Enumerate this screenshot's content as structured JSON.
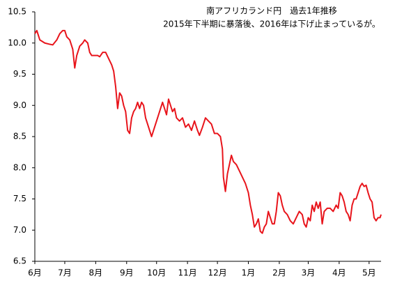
{
  "chart_data": {
    "type": "line",
    "title": "南アフリカランド円　過去1年推移",
    "subtitle": "2015年下半期に暴落後、2016年は下げ止まっているが。",
    "x": [
      0,
      2,
      5,
      10,
      15,
      18,
      22,
      25,
      28,
      30,
      32,
      35,
      37,
      38,
      40,
      42,
      45,
      48,
      50,
      53,
      55,
      57,
      60,
      63,
      65,
      68,
      71,
      74,
      77,
      79,
      81,
      83,
      85,
      87,
      89,
      91,
      93,
      95,
      97,
      99,
      101,
      103,
      105,
      107,
      109,
      111,
      113,
      115,
      117,
      120,
      123,
      126,
      128,
      130,
      132,
      134,
      136,
      138,
      140,
      142,
      145,
      148,
      151,
      154,
      157,
      160,
      163,
      165,
      168,
      171,
      174,
      177,
      180,
      183,
      186,
      188,
      189,
      191,
      193,
      195,
      197,
      199,
      202,
      205,
      208,
      211,
      214,
      216,
      218,
      220,
      222,
      224,
      226,
      228,
      230,
      232,
      234,
      236,
      238,
      240,
      242,
      244,
      246,
      248,
      250,
      253,
      256,
      259,
      262,
      265,
      268,
      270,
      272,
      274,
      276,
      278,
      280,
      282,
      284,
      286,
      288,
      290,
      293,
      296,
      299,
      302,
      304,
      306,
      308,
      310,
      312,
      314,
      316,
      318,
      320,
      322,
      324,
      326,
      328,
      330,
      332,
      334,
      336,
      338,
      340,
      342,
      344,
      346,
      347
    ],
    "series": [
      {
        "name": "南アフリカランド円",
        "color": "#e8141b",
        "values": [
          10.15,
          10.2,
          10.05,
          10.0,
          9.98,
          9.97,
          10.05,
          10.15,
          10.2,
          10.2,
          10.1,
          10.05,
          9.95,
          9.9,
          9.6,
          9.8,
          9.95,
          10.0,
          10.05,
          10.0,
          9.85,
          9.8,
          9.8,
          9.8,
          9.78,
          9.85,
          9.85,
          9.75,
          9.65,
          9.55,
          9.3,
          8.95,
          9.2,
          9.15,
          9.0,
          8.9,
          8.6,
          8.55,
          8.8,
          8.9,
          8.95,
          9.05,
          8.95,
          9.05,
          9.0,
          8.8,
          8.7,
          8.6,
          8.5,
          8.65,
          8.8,
          8.95,
          9.05,
          8.95,
          8.85,
          9.1,
          9.0,
          8.9,
          8.95,
          8.8,
          8.75,
          8.8,
          8.65,
          8.7,
          8.6,
          8.75,
          8.6,
          8.52,
          8.65,
          8.8,
          8.75,
          8.7,
          8.55,
          8.55,
          8.5,
          8.3,
          7.85,
          7.62,
          7.9,
          8.05,
          8.2,
          8.1,
          8.05,
          7.95,
          7.85,
          7.75,
          7.6,
          7.4,
          7.25,
          7.05,
          7.1,
          7.18,
          6.98,
          6.95,
          7.05,
          7.1,
          7.3,
          7.2,
          7.1,
          7.1,
          7.3,
          7.6,
          7.55,
          7.4,
          7.3,
          7.25,
          7.15,
          7.1,
          7.2,
          7.3,
          7.25,
          7.1,
          7.05,
          7.2,
          7.15,
          7.4,
          7.3,
          7.45,
          7.35,
          7.45,
          7.1,
          7.3,
          7.35,
          7.35,
          7.3,
          7.4,
          7.35,
          7.6,
          7.55,
          7.45,
          7.3,
          7.25,
          7.15,
          7.4,
          7.5,
          7.5,
          7.6,
          7.7,
          7.75,
          7.7,
          7.72,
          7.6,
          7.5,
          7.45,
          7.2,
          7.15,
          7.2,
          7.2,
          7.25
        ]
      }
    ],
    "xlim": [
      0,
      347
    ],
    "xticks": [
      {
        "value": 0,
        "label": "6月"
      },
      {
        "value": 30,
        "label": "7月"
      },
      {
        "value": 61,
        "label": "8月"
      },
      {
        "value": 92,
        "label": "9月"
      },
      {
        "value": 122,
        "label": "10月"
      },
      {
        "value": 153,
        "label": "11月"
      },
      {
        "value": 183,
        "label": "12月"
      },
      {
        "value": 214,
        "label": "1月"
      },
      {
        "value": 245,
        "label": "2月"
      },
      {
        "value": 274,
        "label": "3月"
      },
      {
        "value": 305,
        "label": "4月"
      },
      {
        "value": 335,
        "label": "5月"
      }
    ],
    "ylim": [
      6.5,
      10.5
    ],
    "yticks": [
      6.5,
      {
        "value": 7,
        "label": "7.0"
      },
      7.5,
      {
        "value": 8,
        "label": "8.0"
      },
      8.5,
      {
        "value": 9,
        "label": "9.0"
      },
      9.5,
      {
        "value": 10,
        "label": "10.0"
      },
      10.5
    ],
    "grid": false
  }
}
